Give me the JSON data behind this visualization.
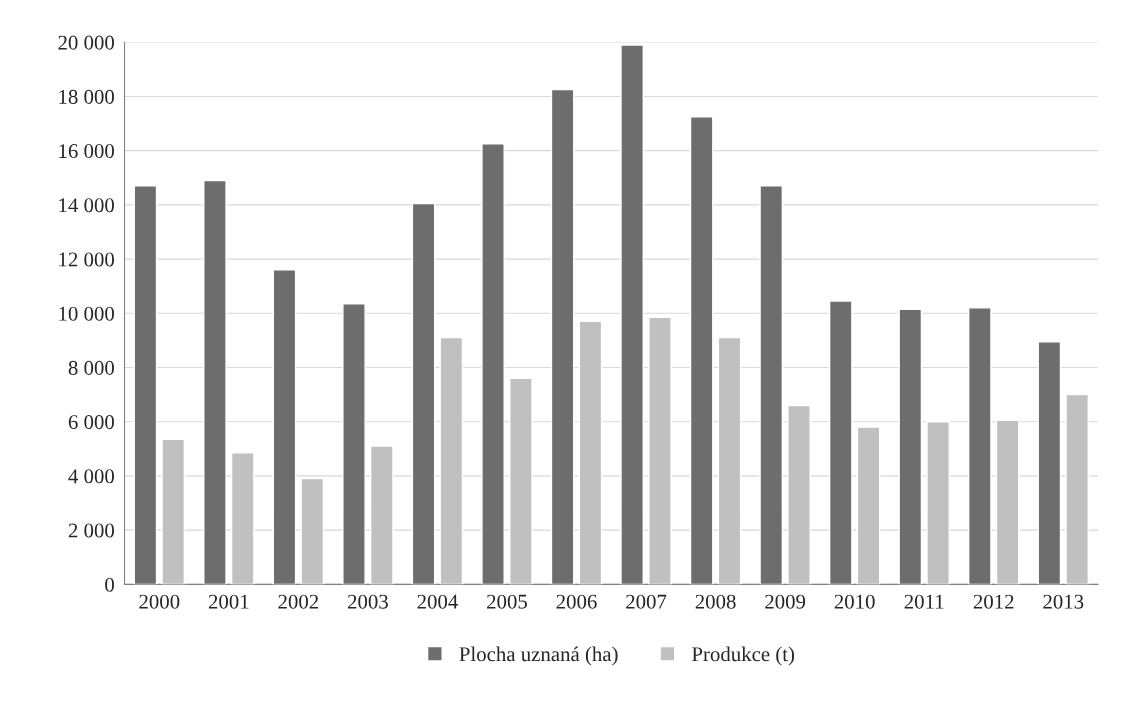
{
  "chart_data": {
    "type": "bar",
    "categories": [
      "2000",
      "2001",
      "2002",
      "2003",
      "2004",
      "2005",
      "2006",
      "2007",
      "2008",
      "2009",
      "2010",
      "2011",
      "2012",
      "2013"
    ],
    "series": [
      {
        "name": "Plocha uznaná (ha)",
        "color": "#6d6d6d",
        "values": [
          14700,
          14900,
          11600,
          10350,
          14050,
          16250,
          18250,
          19900,
          17250,
          14700,
          10450,
          10150,
          10200,
          8950
        ]
      },
      {
        "name": "Produkce (t)",
        "color": "#c0c0c0",
        "values": [
          5350,
          4850,
          3900,
          5100,
          9100,
          7600,
          9700,
          9850,
          9100,
          6600,
          5800,
          6000,
          6050,
          7000
        ]
      }
    ],
    "ylim": [
      0,
      20000
    ],
    "yticks": [
      {
        "value": 0,
        "label": "0"
      },
      {
        "value": 2000,
        "label": "2 000"
      },
      {
        "value": 4000,
        "label": "4 000"
      },
      {
        "value": 6000,
        "label": "6 000"
      },
      {
        "value": 8000,
        "label": "8 000"
      },
      {
        "value": 10000,
        "label": "10 000"
      },
      {
        "value": 12000,
        "label": "12 000"
      },
      {
        "value": 14000,
        "label": "14 000"
      },
      {
        "value": 16000,
        "label": "16 000"
      },
      {
        "value": 18000,
        "label": "18 000"
      },
      {
        "value": 20000,
        "label": "20 000"
      }
    ],
    "grid": "y",
    "legend": "bottom"
  }
}
